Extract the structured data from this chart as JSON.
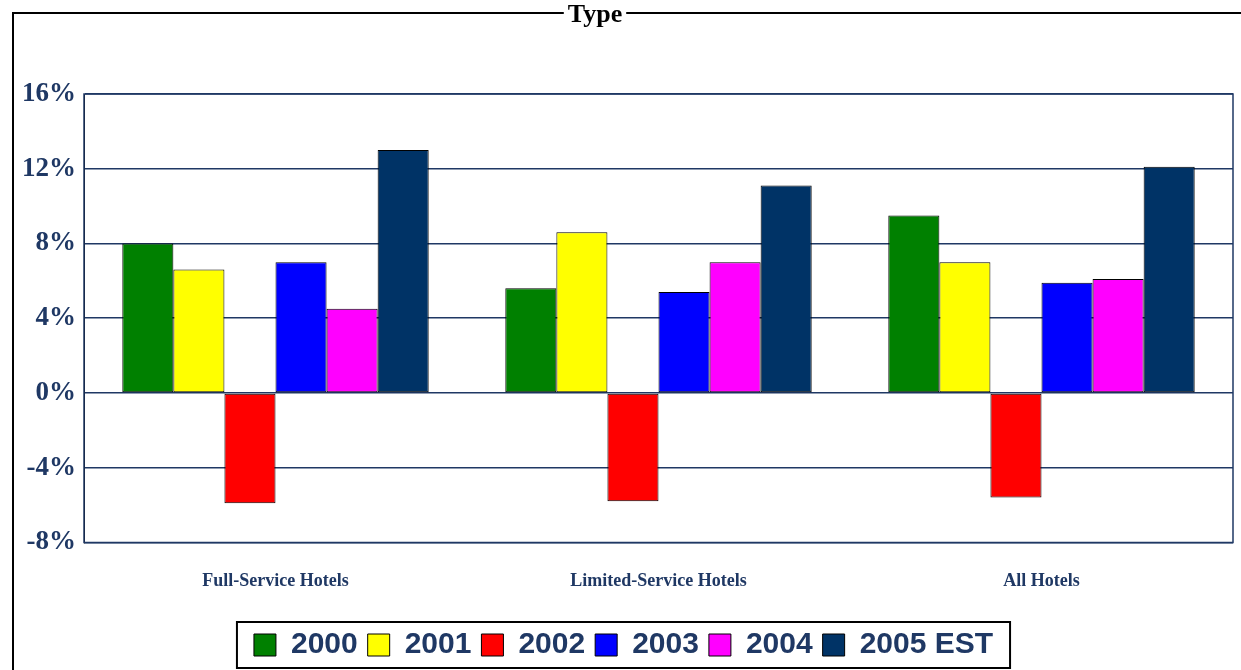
{
  "chart_data": {
    "type": "bar",
    "title": "Type",
    "categories": [
      "Full-Service Hotels",
      "Limited-Service Hotels",
      "All Hotels"
    ],
    "series": [
      {
        "name": "2000",
        "color": "#008000",
        "values": [
          8.0,
          5.6,
          9.5
        ]
      },
      {
        "name": "2001",
        "color": "#ffff00",
        "values": [
          6.6,
          8.6,
          7.0
        ]
      },
      {
        "name": "2002",
        "color": "#ff0000",
        "values": [
          -5.9,
          -5.8,
          -5.6
        ]
      },
      {
        "name": "2003",
        "color": "#0000ff",
        "values": [
          7.0,
          5.4,
          5.9
        ]
      },
      {
        "name": "2004",
        "color": "#ff00ff",
        "values": [
          4.5,
          7.0,
          6.1
        ]
      },
      {
        "name": "2005 EST",
        "color": "#003366",
        "values": [
          13.0,
          11.1,
          12.1
        ]
      }
    ],
    "ylim": [
      -8,
      16
    ],
    "yticks": [
      {
        "value": -8,
        "label": "-8%"
      },
      {
        "value": -4,
        "label": "-4%"
      },
      {
        "value": 0,
        "label": "0%"
      },
      {
        "value": 4,
        "label": "4%"
      },
      {
        "value": 8,
        "label": "8%"
      },
      {
        "value": 12,
        "label": "12%"
      },
      {
        "value": 16,
        "label": "16%"
      }
    ],
    "grid": "y",
    "legend": "bottom"
  }
}
